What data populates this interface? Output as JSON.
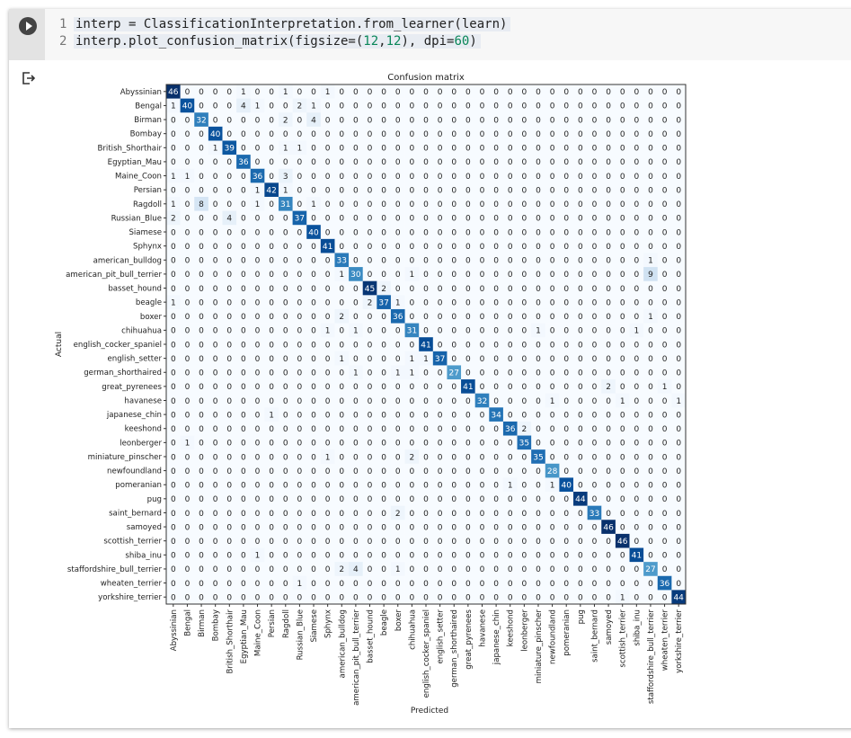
{
  "code_cell": {
    "lines": [
      {
        "number": "1",
        "parts": [
          "interp = ClassificationInterpretation.from_learner(learn)"
        ]
      },
      {
        "number": "2",
        "parts": [
          "interp.plot_confusion_matrix(figsize=(",
          "12",
          ",",
          "12",
          "), dpi=",
          "60",
          ")"
        ]
      }
    ]
  },
  "chart_data": {
    "type": "heatmap",
    "title": "Confusion matrix",
    "xlabel": "Predicted",
    "ylabel": "Actual",
    "colormap": "Blues",
    "vmax": 46,
    "classes": [
      "Abyssinian",
      "Bengal",
      "Birman",
      "Bombay",
      "British_Shorthair",
      "Egyptian_Mau",
      "Maine_Coon",
      "Persian",
      "Ragdoll",
      "Russian_Blue",
      "Siamese",
      "Sphynx",
      "american_bulldog",
      "american_pit_bull_terrier",
      "basset_hound",
      "beagle",
      "boxer",
      "chihuahua",
      "english_cocker_spaniel",
      "english_setter",
      "german_shorthaired",
      "great_pyrenees",
      "havanese",
      "japanese_chin",
      "keeshond",
      "leonberger",
      "miniature_pinscher",
      "newfoundland",
      "pomeranian",
      "pug",
      "saint_bernard",
      "samoyed",
      "scottish_terrier",
      "shiba_inu",
      "staffordshire_bull_terrier",
      "wheaten_terrier",
      "yorkshire_terrier"
    ],
    "matrix_nonzero_note": "per actual row: [predicted_col, count]; all other cells 0",
    "rows": [
      [
        [
          0,
          46
        ],
        [
          5,
          1
        ],
        [
          8,
          1
        ],
        [
          11,
          1
        ]
      ],
      [
        [
          0,
          1
        ],
        [
          1,
          40
        ],
        [
          5,
          4
        ],
        [
          6,
          1
        ],
        [
          9,
          2
        ],
        [
          10,
          1
        ]
      ],
      [
        [
          2,
          32
        ],
        [
          8,
          2
        ],
        [
          10,
          4
        ]
      ],
      [
        [
          3,
          40
        ]
      ],
      [
        [
          3,
          1
        ],
        [
          4,
          39
        ],
        [
          8,
          1
        ],
        [
          9,
          1
        ]
      ],
      [
        [
          5,
          36
        ]
      ],
      [
        [
          0,
          1
        ],
        [
          1,
          1
        ],
        [
          6,
          36
        ],
        [
          8,
          3
        ]
      ],
      [
        [
          6,
          1
        ],
        [
          7,
          42
        ],
        [
          8,
          1
        ]
      ],
      [
        [
          0,
          1
        ],
        [
          2,
          8
        ],
        [
          6,
          1
        ],
        [
          8,
          31
        ],
        [
          10,
          1
        ]
      ],
      [
        [
          0,
          2
        ],
        [
          4,
          4
        ],
        [
          9,
          37
        ]
      ],
      [
        [
          10,
          40
        ]
      ],
      [
        [
          11,
          41
        ]
      ],
      [
        [
          12,
          33
        ],
        [
          34,
          1
        ]
      ],
      [
        [
          12,
          1
        ],
        [
          13,
          30
        ],
        [
          17,
          1
        ],
        [
          34,
          9
        ]
      ],
      [
        [
          14,
          45
        ],
        [
          15,
          2
        ]
      ],
      [
        [
          0,
          1
        ],
        [
          14,
          2
        ],
        [
          15,
          37
        ],
        [
          16,
          1
        ]
      ],
      [
        [
          12,
          2
        ],
        [
          16,
          36
        ],
        [
          34,
          1
        ]
      ],
      [
        [
          11,
          1
        ],
        [
          13,
          1
        ],
        [
          17,
          31
        ],
        [
          26,
          1
        ],
        [
          33,
          1
        ]
      ],
      [
        [
          18,
          41
        ]
      ],
      [
        [
          12,
          1
        ],
        [
          17,
          1
        ],
        [
          18,
          1
        ],
        [
          19,
          37
        ]
      ],
      [
        [
          13,
          1
        ],
        [
          16,
          1
        ],
        [
          17,
          1
        ],
        [
          20,
          27
        ]
      ],
      [
        [
          21,
          41
        ],
        [
          31,
          2
        ],
        [
          35,
          1
        ]
      ],
      [
        [
          22,
          32
        ],
        [
          27,
          1
        ],
        [
          32,
          1
        ],
        [
          36,
          1
        ]
      ],
      [
        [
          7,
          1
        ],
        [
          23,
          34
        ]
      ],
      [
        [
          24,
          36
        ],
        [
          25,
          2
        ]
      ],
      [
        [
          1,
          1
        ],
        [
          25,
          35
        ]
      ],
      [
        [
          11,
          1
        ],
        [
          17,
          2
        ],
        [
          26,
          35
        ]
      ],
      [
        [
          27,
          28
        ]
      ],
      [
        [
          24,
          1
        ],
        [
          27,
          1
        ],
        [
          28,
          40
        ]
      ],
      [
        [
          29,
          44
        ]
      ],
      [
        [
          16,
          2
        ],
        [
          30,
          33
        ]
      ],
      [
        [
          31,
          46
        ]
      ],
      [
        [
          32,
          46
        ]
      ],
      [
        [
          6,
          1
        ],
        [
          33,
          41
        ]
      ],
      [
        [
          12,
          2
        ],
        [
          13,
          4
        ],
        [
          16,
          1
        ],
        [
          34,
          27
        ]
      ],
      [
        [
          9,
          1
        ],
        [
          35,
          36
        ]
      ],
      [
        [
          32,
          1
        ],
        [
          36,
          44
        ]
      ]
    ]
  }
}
